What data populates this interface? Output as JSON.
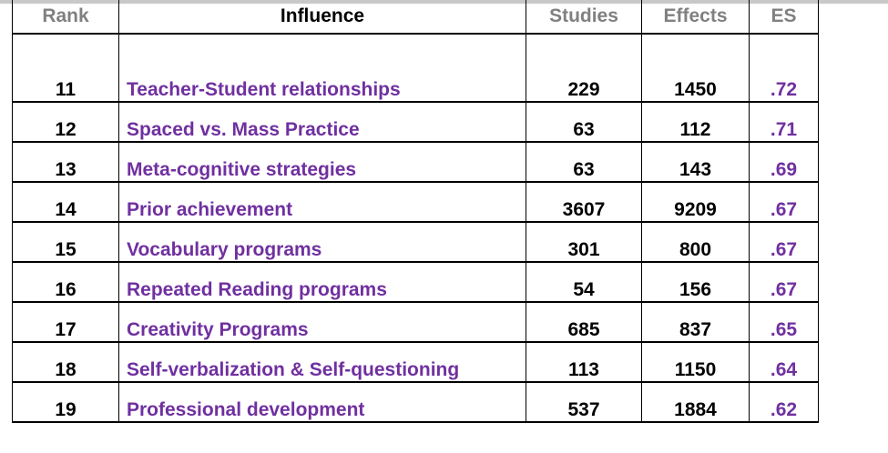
{
  "headers": {
    "rank": "Rank",
    "influence": "Influence",
    "studies": "Studies",
    "effects": "Effects",
    "es": "ES"
  },
  "colors": {
    "influence_text": "#7030a0",
    "header_gray": "#808080"
  },
  "rows": [
    {
      "rank": "11",
      "influence": "Teacher-Student relationships",
      "studies": "229",
      "effects": "1450",
      "es": ".72"
    },
    {
      "rank": "12",
      "influence": "Spaced vs. Mass Practice",
      "studies": "63",
      "effects": "112",
      "es": ".71"
    },
    {
      "rank": "13",
      "influence": "Meta-cognitive strategies",
      "studies": "63",
      "effects": "143",
      "es": ".69"
    },
    {
      "rank": "14",
      "influence": "Prior achievement",
      "studies": "3607",
      "effects": "9209",
      "es": ".67"
    },
    {
      "rank": "15",
      "influence": "Vocabulary programs",
      "studies": "301",
      "effects": "800",
      "es": ".67"
    },
    {
      "rank": "16",
      "influence": "Repeated Reading programs",
      "studies": "54",
      "effects": "156",
      "es": ".67"
    },
    {
      "rank": "17",
      "influence": "Creativity Programs",
      "studies": "685",
      "effects": "837",
      "es": ".65"
    },
    {
      "rank": "18",
      "influence": "Self-verbalization & Self-questioning",
      "studies": "113",
      "effects": "1150",
      "es": ".64"
    },
    {
      "rank": "19",
      "influence": "Professional development",
      "studies": "537",
      "effects": "1884",
      "es": ".62"
    }
  ]
}
